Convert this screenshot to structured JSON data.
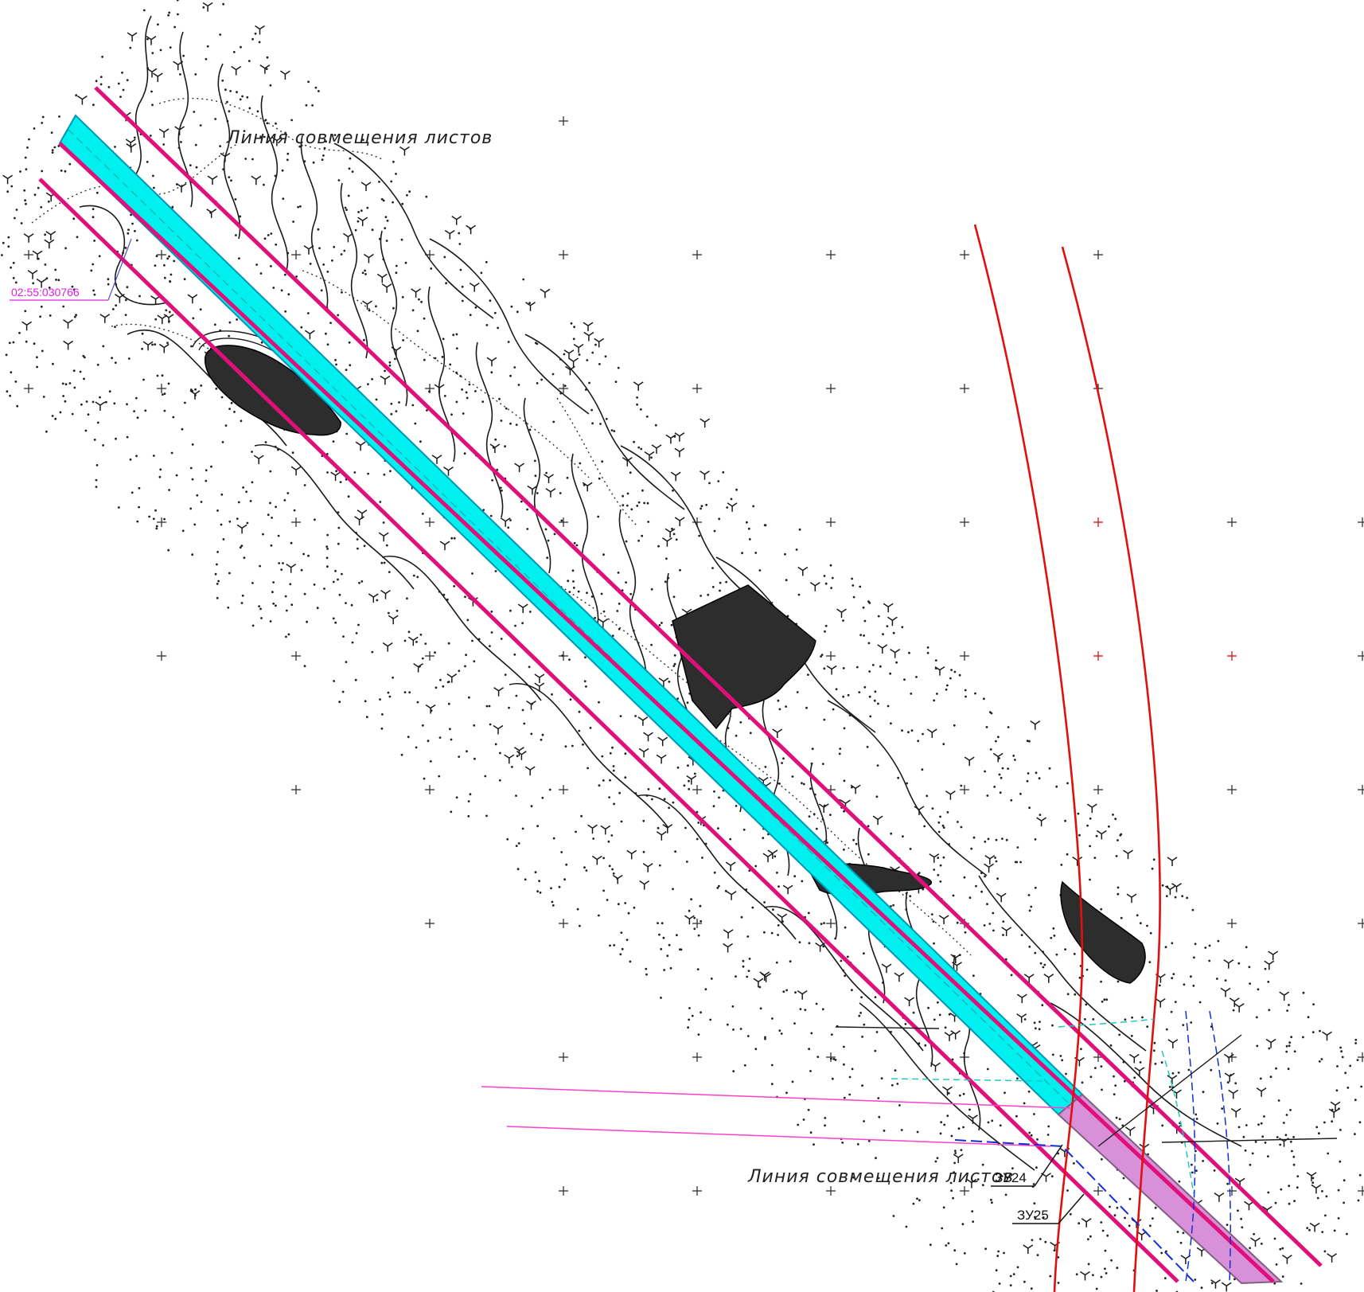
{
  "labels": {
    "sheet_join_top": "Линия совмещения листов",
    "sheet_join_bottom": "Линия совмещения листов",
    "cadastral_number": "02:55:030766",
    "plot_24": "ЗУ24",
    "plot_25": "ЗУ25"
  },
  "colors": {
    "corridor_fill": "#00f0f0",
    "corridor_pink_fill": "#d890d8",
    "boundary_line": "#e0107a",
    "road_line": "#e01010",
    "thin_pink_line": "#ff40c8",
    "cadastral_label": "#e020e0",
    "utility_blue": "#1030d0",
    "utility_cyan": "#20c8c8",
    "contour": "#1a1a1a",
    "grid_cross": "#333333",
    "grid_cross_red": "#e01010"
  }
}
